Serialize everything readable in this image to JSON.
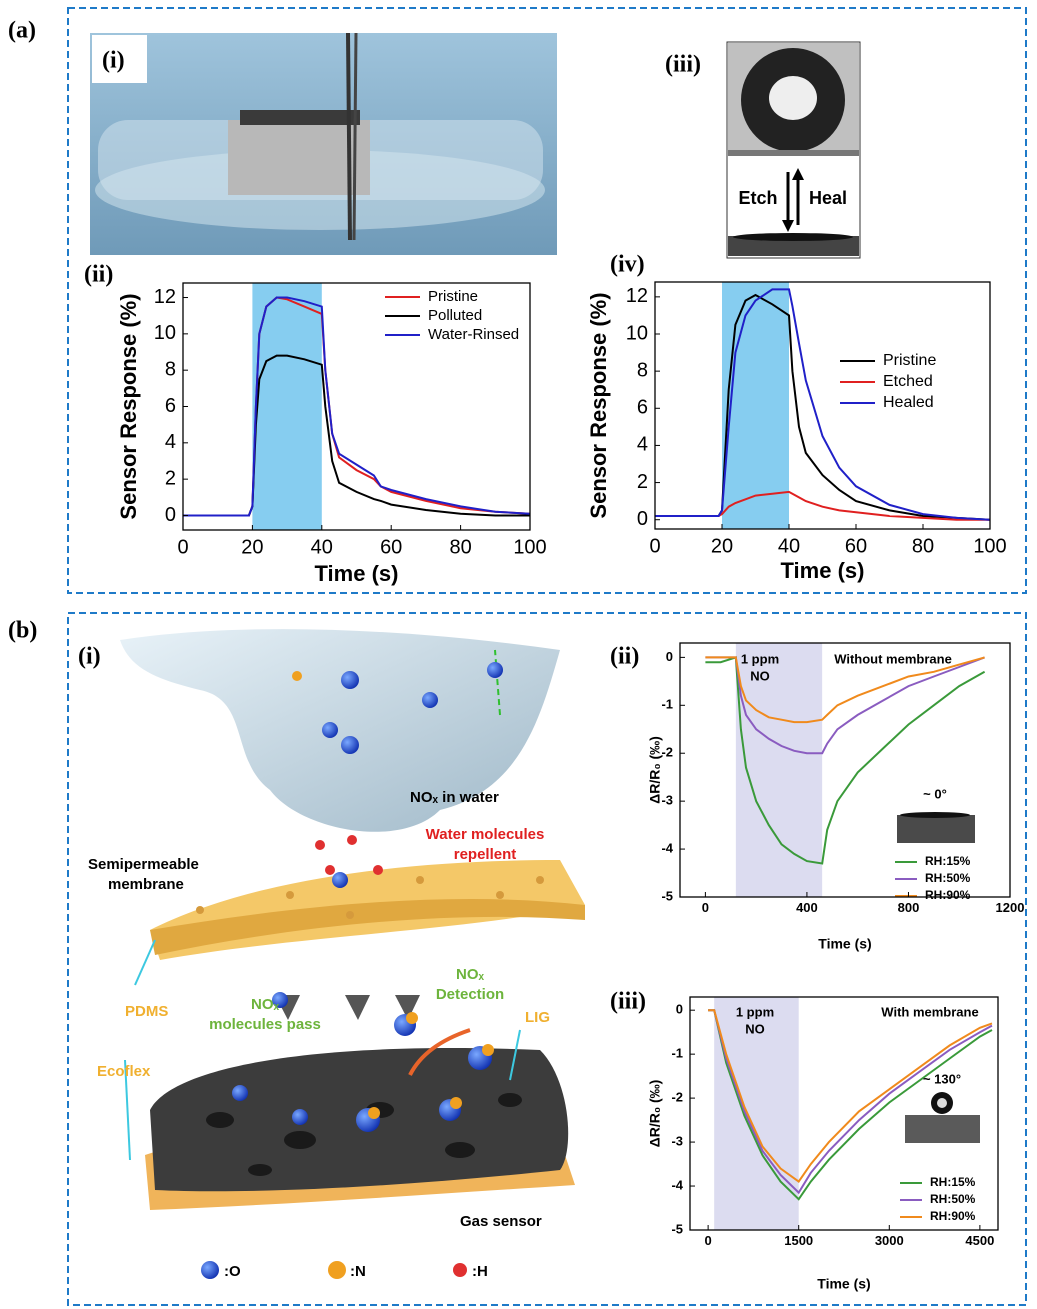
{
  "figure": {
    "panel_a": "(a)",
    "panel_b": "(b)",
    "a_i": "(i)",
    "a_ii": "(ii)",
    "a_iii": "(iii)",
    "a_iv": "(iv)",
    "b_i": "(i)",
    "b_ii": "(ii)",
    "b_iii": "(iii)",
    "etch": "Etch",
    "heal": "Heal",
    "illustration": {
      "nox_water": "NOₓ in water",
      "repellent": [
        "Water molecules",
        "repellent"
      ],
      "membrane": [
        "Semipermeable",
        "membrane"
      ],
      "detection": [
        "NOₓ",
        "Detection"
      ],
      "pass": [
        "NOₓ",
        "molecules pass"
      ],
      "pdms": "PDMS",
      "lig": "LIG",
      "ecoflex": "Ecoflex",
      "gas_sensor": "Gas sensor",
      "legend_o": ":O",
      "legend_n": ":N",
      "legend_h": ":H"
    },
    "annotations_b_ii": [
      "1 ppm",
      "NO",
      "Without membrane",
      "~ 0°"
    ],
    "annotations_b_iii": [
      "1 ppm",
      "NO",
      "With membrane",
      "~ 130°"
    ]
  },
  "chart_data": [
    {
      "type": "line",
      "xlabel": "Time (s)",
      "ylabel": "Sensor Response (%)",
      "xlim": [
        0,
        100
      ],
      "ylim": [
        -0.8,
        12.8
      ],
      "xticks": [
        0,
        20,
        40,
        60,
        80,
        100
      ],
      "yticks": [
        0,
        2,
        4,
        6,
        8,
        10,
        12
      ],
      "shade": [
        20,
        40
      ],
      "shade_color": "#86cdf0",
      "x": [
        0,
        19,
        20,
        21,
        22,
        24,
        27,
        30,
        35,
        40,
        41,
        43,
        45,
        50,
        55,
        57,
        60,
        70,
        80,
        90,
        100
      ],
      "series": [
        {
          "name": "Pristine",
          "color": "#e02020",
          "values": [
            0,
            0,
            0.5,
            6,
            10,
            11.5,
            12,
            11.9,
            11.5,
            11.1,
            8,
            4.5,
            3.2,
            2.5,
            2.0,
            1.6,
            1.3,
            0.8,
            0.4,
            0.2,
            0.1
          ]
        },
        {
          "name": "Polluted",
          "color": "#000000",
          "values": [
            0,
            0,
            0.5,
            5,
            7.5,
            8.5,
            8.8,
            8.8,
            8.6,
            8.3,
            6,
            3,
            1.8,
            1.3,
            0.9,
            0.8,
            0.6,
            0.3,
            0.1,
            0,
            0
          ]
        },
        {
          "name": "Water-Rinsed",
          "color": "#2020c8",
          "values": [
            0,
            0,
            0.5,
            6,
            10,
            11.5,
            12,
            12,
            11.8,
            11.5,
            8,
            4.5,
            3.4,
            2.8,
            2.2,
            1.6,
            1.4,
            0.9,
            0.5,
            0.2,
            0.1
          ]
        }
      ]
    },
    {
      "type": "line",
      "xlabel": "Time (s)",
      "ylabel": "Sensor Response (%)",
      "xlim": [
        0,
        100
      ],
      "ylim": [
        -0.5,
        12.8
      ],
      "xticks": [
        0,
        20,
        40,
        60,
        80,
        100
      ],
      "yticks": [
        0,
        2,
        4,
        6,
        8,
        10,
        12
      ],
      "shade": [
        20,
        40
      ],
      "shade_color": "#86cdf0",
      "x": [
        0,
        19,
        20,
        22,
        24,
        27,
        30,
        35,
        40,
        41,
        43,
        45,
        50,
        55,
        60,
        70,
        80,
        90,
        100
      ],
      "series": [
        {
          "name": "Pristine",
          "color": "#000000",
          "values": [
            0.2,
            0.2,
            0.5,
            7,
            10.5,
            11.8,
            12.1,
            11.6,
            11.0,
            8,
            5,
            3.6,
            2.4,
            1.6,
            1.0,
            0.5,
            0.2,
            0.1,
            0
          ]
        },
        {
          "name": "Etched",
          "color": "#e02020",
          "values": [
            0.2,
            0.2,
            0.3,
            0.7,
            0.9,
            1.1,
            1.3,
            1.4,
            1.5,
            1.4,
            1.2,
            1,
            0.7,
            0.5,
            0.4,
            0.2,
            0.1,
            0,
            0
          ]
        },
        {
          "name": "Healed",
          "color": "#2020c8",
          "values": [
            0.2,
            0.2,
            0.5,
            5,
            9,
            11,
            11.8,
            12.4,
            12.4,
            11.5,
            9.5,
            7.5,
            4.5,
            2.8,
            1.8,
            0.8,
            0.3,
            0.1,
            0
          ]
        }
      ]
    },
    {
      "type": "line",
      "xlabel": "Time (s)",
      "ylabel": "ΔR/R₀ (‰)",
      "xlim": [
        -100,
        1200
      ],
      "ylim": [
        -5,
        0.3
      ],
      "xticks": [
        0,
        400,
        800,
        1200
      ],
      "yticks": [
        0,
        -1,
        -2,
        -3,
        -4,
        -5
      ],
      "shade": [
        120,
        460
      ],
      "shade_color": "#dcdcf0",
      "x": [
        0,
        60,
        120,
        140,
        160,
        200,
        250,
        300,
        350,
        400,
        460,
        480,
        520,
        600,
        700,
        800,
        900,
        1000,
        1100
      ],
      "series": [
        {
          "name": "RH:15%",
          "color": "#3a9a3a",
          "values": [
            -0.1,
            -0.1,
            0,
            -1.5,
            -2.3,
            -3.0,
            -3.5,
            -3.9,
            -4.1,
            -4.25,
            -4.3,
            -3.6,
            -3.0,
            -2.4,
            -1.9,
            -1.4,
            -1.0,
            -0.6,
            -0.3
          ]
        },
        {
          "name": "RH:50%",
          "color": "#8a5cc0",
          "values": [
            0,
            0,
            0,
            -0.8,
            -1.2,
            -1.5,
            -1.7,
            -1.85,
            -1.95,
            -2.0,
            -2.0,
            -1.8,
            -1.5,
            -1.2,
            -0.9,
            -0.6,
            -0.4,
            -0.2,
            0
          ]
        },
        {
          "name": "RH:90%",
          "color": "#f08a1c",
          "values": [
            0,
            0,
            0,
            -0.6,
            -0.9,
            -1.1,
            -1.25,
            -1.3,
            -1.35,
            -1.35,
            -1.3,
            -1.2,
            -1.0,
            -0.8,
            -0.6,
            -0.4,
            -0.3,
            -0.15,
            0
          ]
        }
      ]
    },
    {
      "type": "line",
      "xlabel": "Time (s)",
      "ylabel": "ΔR/R₀ (‰)",
      "xlim": [
        -300,
        4800
      ],
      "ylim": [
        -5,
        0.3
      ],
      "xticks": [
        0,
        1500,
        3000,
        4500
      ],
      "yticks": [
        0,
        -1,
        -2,
        -3,
        -4,
        -5
      ],
      "shade": [
        100,
        1500
      ],
      "shade_color": "#dcdcf0",
      "x": [
        0,
        100,
        300,
        600,
        900,
        1200,
        1500,
        1700,
        2000,
        2500,
        3000,
        3500,
        4000,
        4500,
        4700
      ],
      "series": [
        {
          "name": "RH:15%",
          "color": "#3a9a3a",
          "values": [
            0,
            0,
            -1.2,
            -2.4,
            -3.3,
            -3.9,
            -4.3,
            -3.9,
            -3.4,
            -2.7,
            -2.1,
            -1.6,
            -1.1,
            -0.6,
            -0.45
          ]
        },
        {
          "name": "RH:50%",
          "color": "#8a5cc0",
          "values": [
            0,
            0,
            -1.1,
            -2.3,
            -3.2,
            -3.75,
            -4.15,
            -3.7,
            -3.2,
            -2.5,
            -1.9,
            -1.4,
            -0.9,
            -0.5,
            -0.35
          ]
        },
        {
          "name": "RH:90%",
          "color": "#f08a1c",
          "values": [
            0,
            0,
            -1.0,
            -2.2,
            -3.1,
            -3.6,
            -3.9,
            -3.5,
            -3.0,
            -2.3,
            -1.8,
            -1.3,
            -0.8,
            -0.4,
            -0.3
          ]
        }
      ]
    }
  ]
}
